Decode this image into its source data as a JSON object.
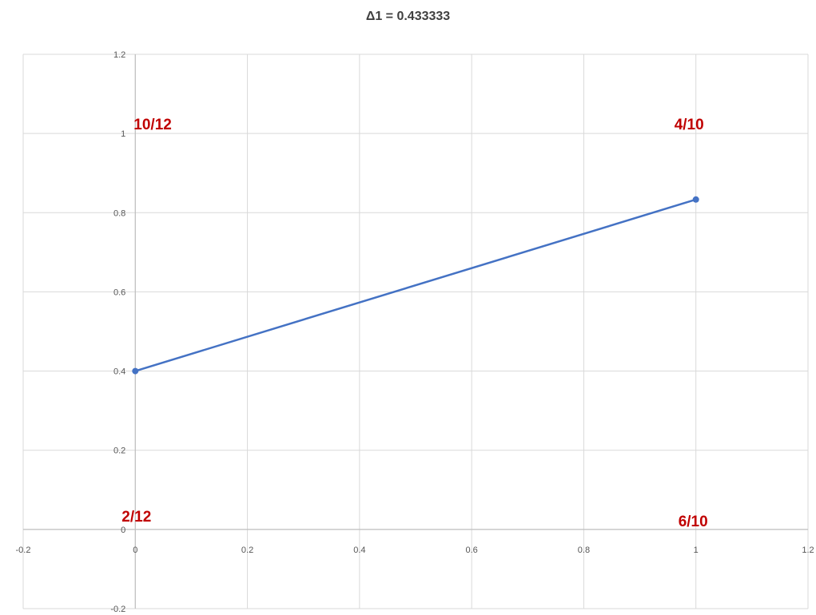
{
  "chart_data": {
    "type": "line",
    "title": "Δ1 = 0.433333",
    "xlabel": "",
    "ylabel": "",
    "xlim": [
      -0.2,
      1.2
    ],
    "ylim": [
      -0.2,
      1.2
    ],
    "x_ticks": [
      "-0.2",
      "0",
      "0.2",
      "0.4",
      "0.6",
      "0.8",
      "1",
      "1.2"
    ],
    "y_ticks": [
      "-0.2",
      "0",
      "0.2",
      "0.4",
      "0.6",
      "0.8",
      "1",
      "1.2"
    ],
    "grid": true,
    "series": [
      {
        "x": [
          0,
          1
        ],
        "y": [
          0.4,
          0.8333
        ],
        "color": "#4472c4",
        "markers": true
      }
    ],
    "annotations": [
      {
        "text": "10/12",
        "x": 0.0,
        "y": 1.0
      },
      {
        "text": "4/10",
        "x": 1.0,
        "y": 1.0
      },
      {
        "text": "2/12",
        "x": 0.0,
        "y": 0.0
      },
      {
        "text": "6/10",
        "x": 1.0,
        "y": 0.0
      }
    ],
    "annotation_color": "#c00000",
    "grid_color": "#d9d9d9",
    "axis_color": "#bfbfbf"
  }
}
